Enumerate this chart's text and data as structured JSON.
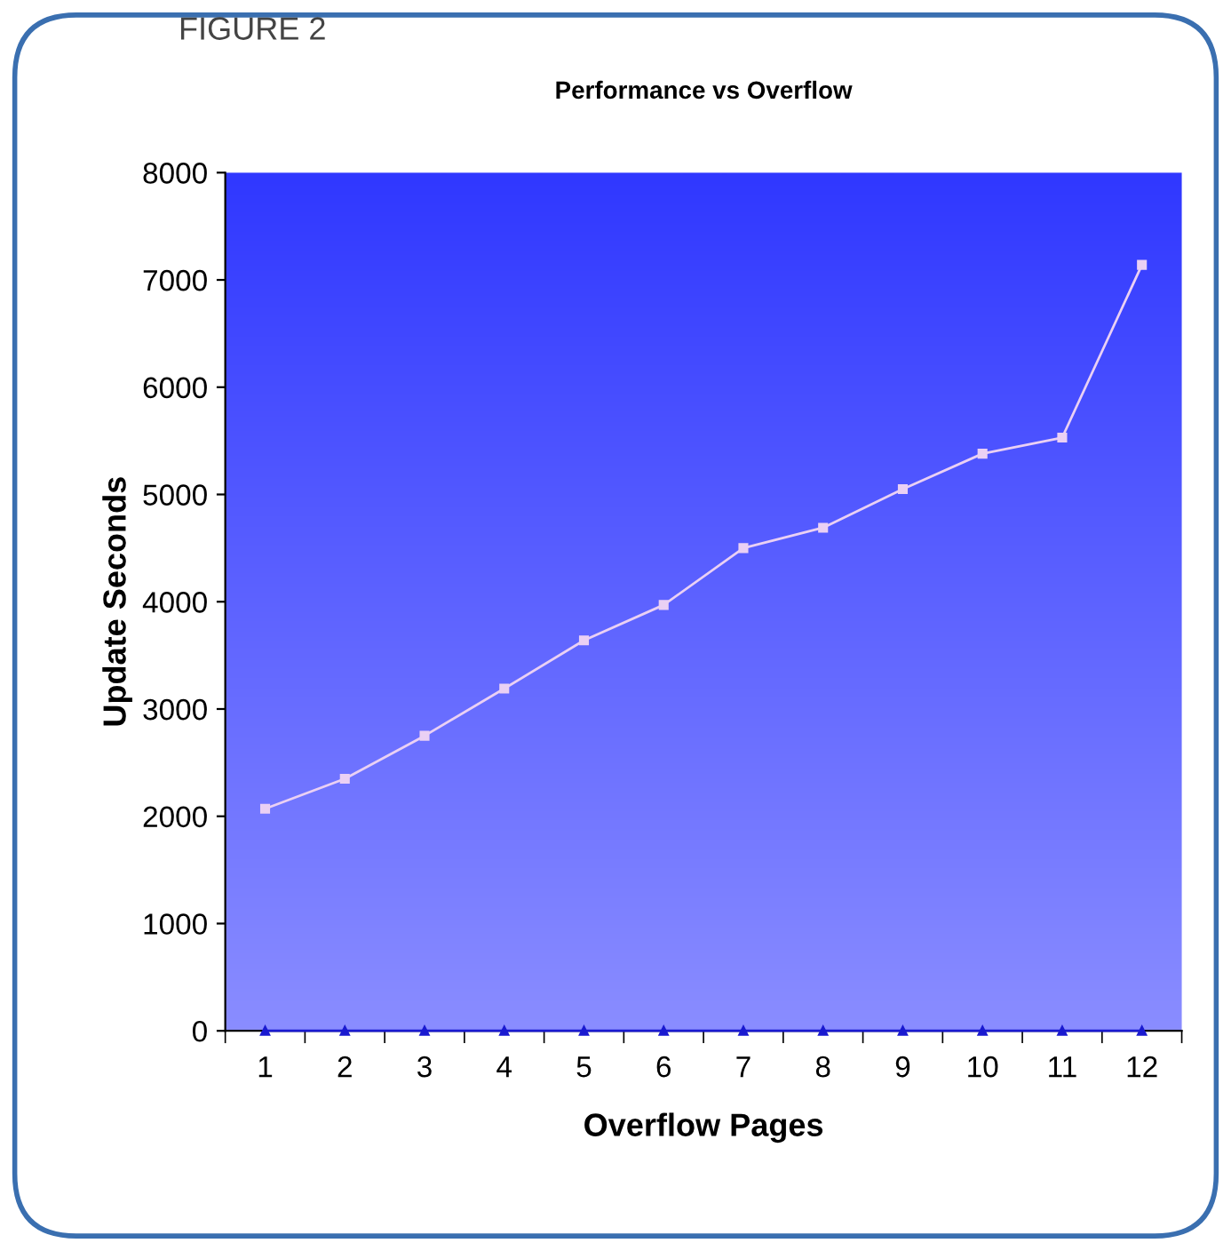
{
  "chart_data": {
    "type": "line",
    "title": "Performance vs Overflow",
    "xlabel": "Overflow Pages",
    "ylabel": "Update Seconds",
    "annotations": [
      "FIGURE 2"
    ],
    "categories": [
      "1",
      "2",
      "3",
      "4",
      "5",
      "6",
      "7",
      "8",
      "9",
      "10",
      "11",
      "12"
    ],
    "series": [
      {
        "color": "#ead0f4",
        "marker": "square",
        "values": [
          2070,
          2350,
          2750,
          3190,
          3640,
          3970,
          4500,
          4690,
          5050,
          5380,
          5530,
          7140
        ]
      },
      {
        "color": "#1a1ad0",
        "marker": "triangle",
        "values": [
          0,
          0,
          0,
          0,
          0,
          0,
          0,
          0,
          0,
          0,
          0,
          0
        ]
      }
    ],
    "ylim": [
      0,
      8000
    ],
    "yticks": [
      0,
      1000,
      2000,
      3000,
      4000,
      5000,
      6000,
      7000,
      8000
    ],
    "grid": false,
    "legend": false,
    "line_style": "solid"
  }
}
